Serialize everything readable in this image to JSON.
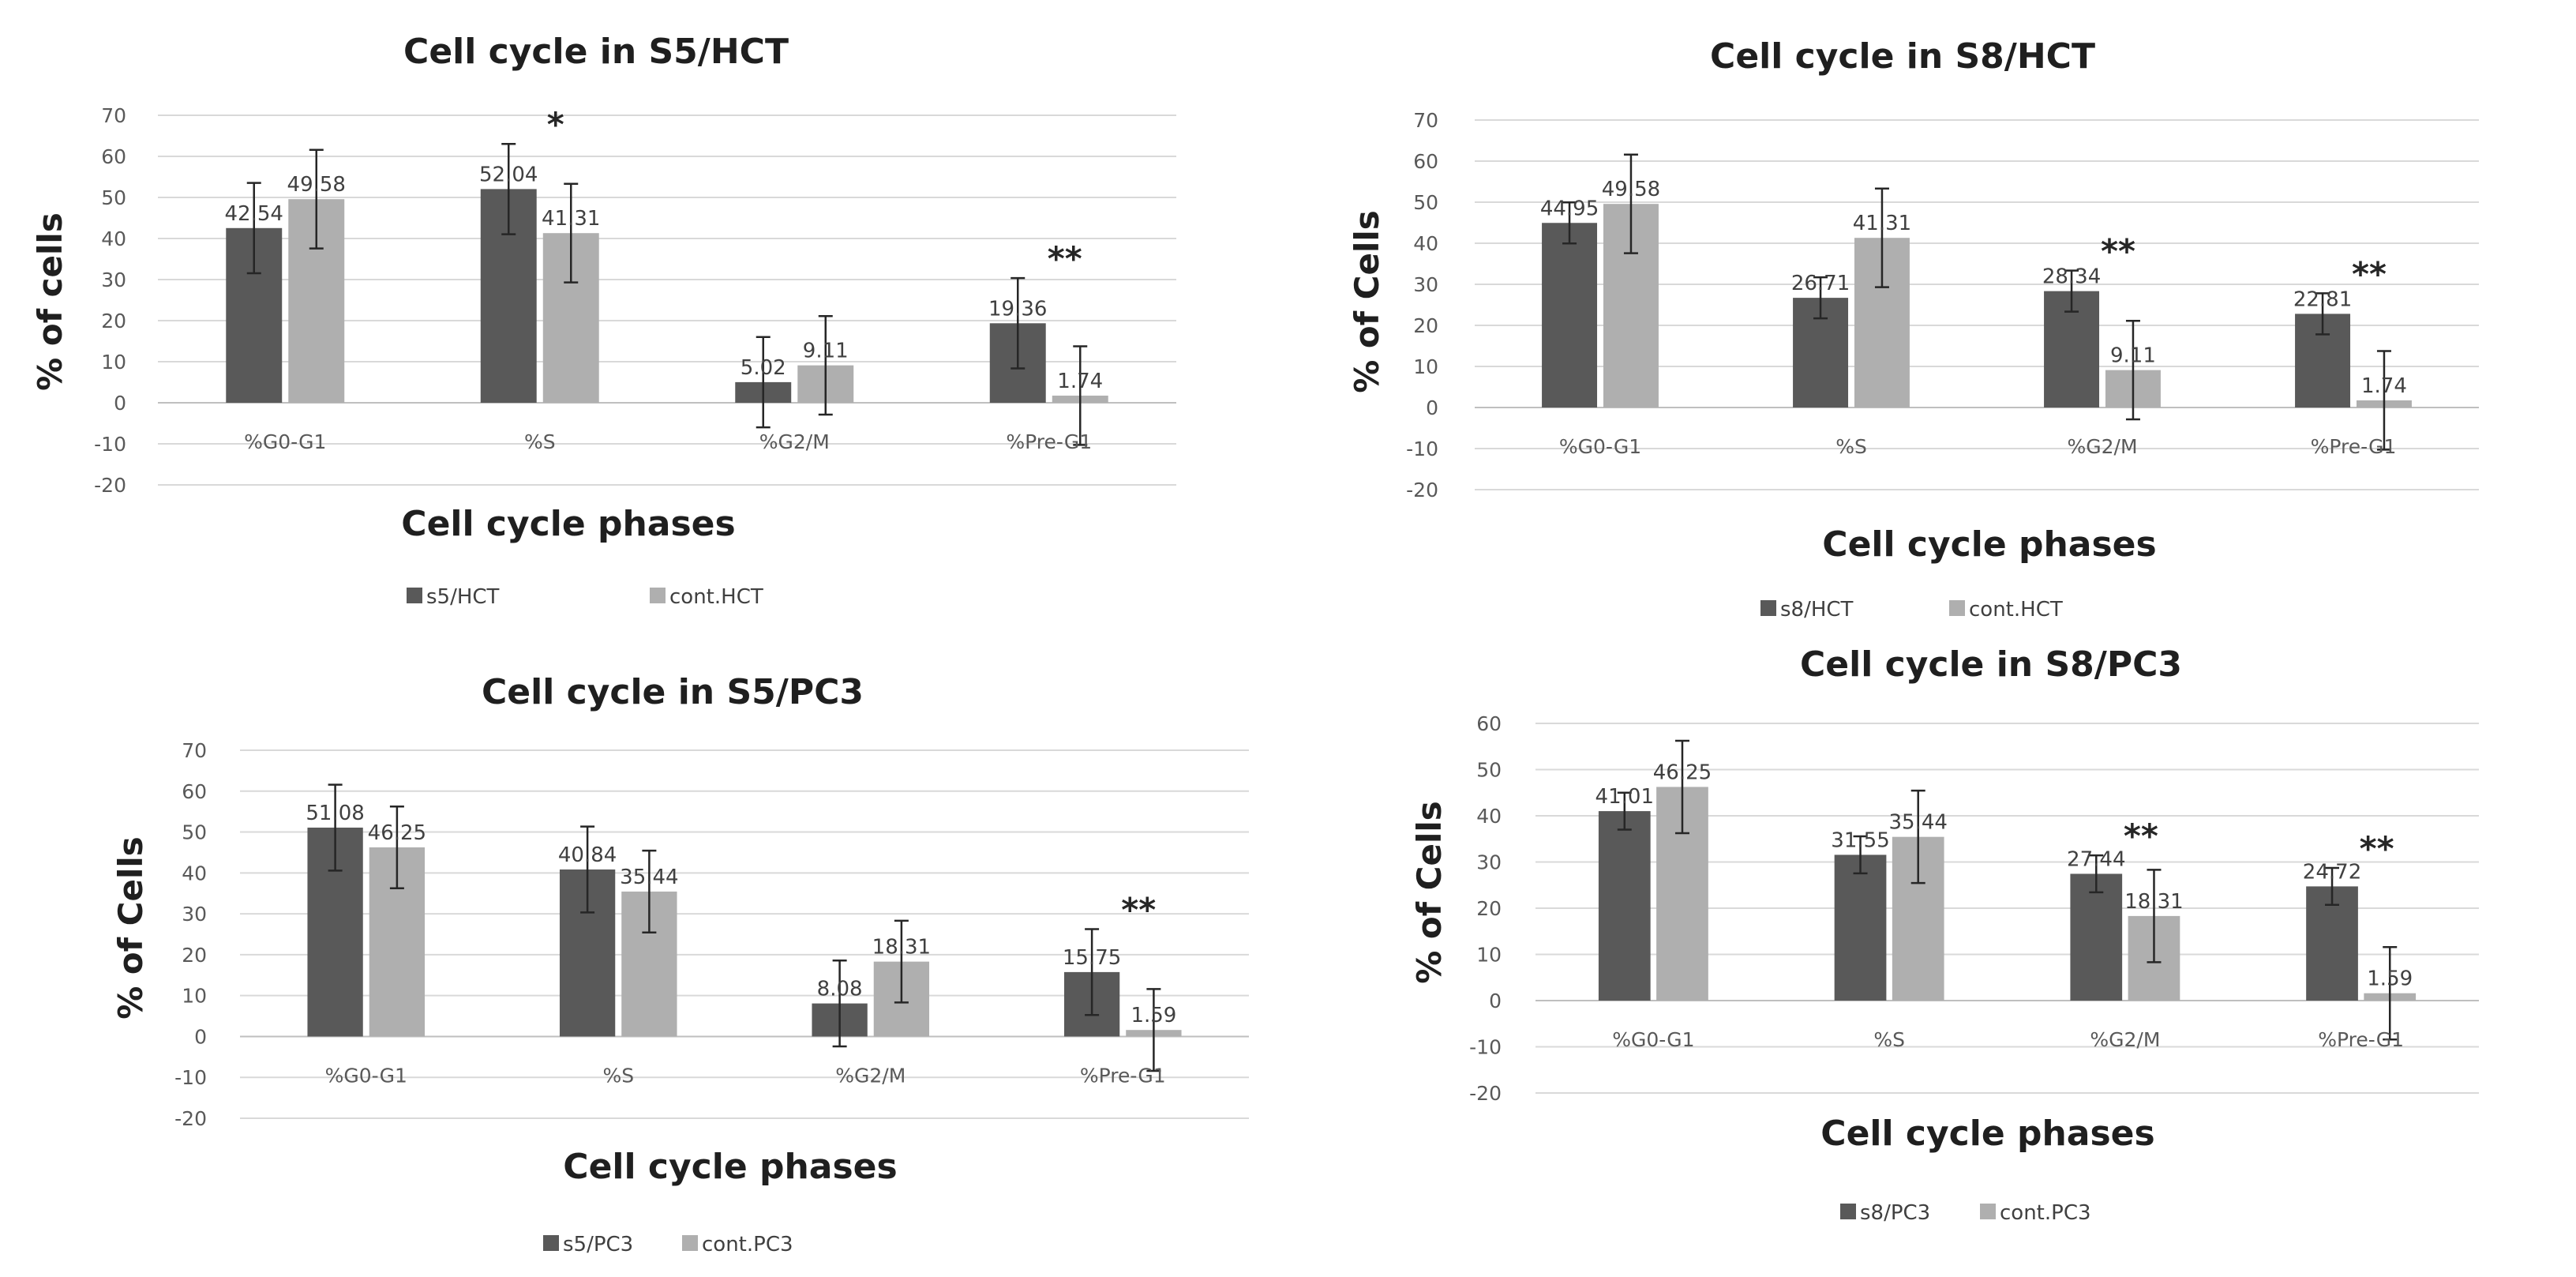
{
  "chart_data": [
    {
      "type": "bar",
      "title": "Cell cycle in S5/HCT",
      "xlabel": "Cell cycle phases",
      "ylabel": "% of cells",
      "categories": [
        "%G0-G1",
        "%S",
        "%G2/M",
        "%Pre-G1"
      ],
      "ylim": [
        -20,
        70
      ],
      "yticks": [
        -20,
        -10,
        0,
        10,
        20,
        30,
        40,
        50,
        60,
        70
      ],
      "grid": true,
      "legend": "bottom",
      "series": [
        {
          "name": "s5/HCT",
          "color": "#595959",
          "values": [
            42.54,
            52.04,
            5.02,
            19.36
          ],
          "labels": [
            "42.54",
            "52.04",
            "5.02",
            "19.36"
          ],
          "errors": [
            11,
            11,
            11,
            11
          ]
        },
        {
          "name": "cont.HCT",
          "color": "#afafaf",
          "values": [
            49.58,
            41.31,
            9.11,
            1.74
          ],
          "labels": [
            "49.58",
            "41.31",
            "9.11",
            "1.74"
          ],
          "errors": [
            12,
            12,
            12,
            12
          ]
        }
      ],
      "annotations": [
        "",
        "*",
        "",
        "**"
      ]
    },
    {
      "type": "bar",
      "title": "Cell cycle in S8/HCT",
      "xlabel": "Cell cycle phases",
      "ylabel": "% of Cells",
      "categories": [
        "%G0-G1",
        "%S",
        "%G2/M",
        "%Pre-G1"
      ],
      "ylim": [
        -20,
        70
      ],
      "yticks": [
        -20,
        -10,
        0,
        10,
        20,
        30,
        40,
        50,
        60,
        70
      ],
      "grid": true,
      "legend": "bottom",
      "series": [
        {
          "name": "s8/HCT",
          "color": "#595959",
          "values": [
            44.95,
            26.71,
            28.34,
            22.81
          ],
          "labels": [
            "44.95",
            "26.71",
            "28.34",
            "22.81"
          ],
          "errors": [
            5,
            5,
            5,
            5
          ]
        },
        {
          "name": "cont.HCT",
          "color": "#afafaf",
          "values": [
            49.58,
            41.31,
            9.11,
            1.74
          ],
          "labels": [
            "49.58",
            "41.31",
            "9.11",
            "1.74"
          ],
          "errors": [
            12,
            12,
            12,
            12
          ]
        }
      ],
      "annotations": [
        "",
        "",
        "**",
        "**"
      ]
    },
    {
      "type": "bar",
      "title": "Cell cycle in S5/PC3",
      "xlabel": "Cell cycle phases",
      "ylabel": "% of Cells",
      "categories": [
        "%G0-G1",
        "%S",
        "%G2/M",
        "%Pre-G1"
      ],
      "ylim": [
        -20,
        70
      ],
      "yticks": [
        -20,
        -10,
        0,
        10,
        20,
        30,
        40,
        50,
        60,
        70
      ],
      "grid": true,
      "legend": "bottom",
      "series": [
        {
          "name": "s5/PC3",
          "color": "#595959",
          "values": [
            51.08,
            40.84,
            8.08,
            15.75
          ],
          "labels": [
            "51.08",
            "40.84",
            "8.08",
            "15.75"
          ],
          "errors": [
            10.5,
            10.5,
            10.5,
            10.5
          ]
        },
        {
          "name": "cont.PC3",
          "color": "#afafaf",
          "values": [
            46.25,
            35.44,
            18.31,
            1.59
          ],
          "labels": [
            "46.25",
            "35.44",
            "18.31",
            "1.59"
          ],
          "errors": [
            10,
            10,
            10,
            10
          ]
        }
      ],
      "annotations": [
        "",
        "",
        "",
        "**"
      ]
    },
    {
      "type": "bar",
      "title": "Cell cycle in S8/PC3",
      "xlabel": "Cell cycle phases",
      "ylabel": "% of Cells",
      "categories": [
        "%G0-G1",
        "%S",
        "%G2/M",
        "%Pre-G1"
      ],
      "ylim": [
        -20,
        60
      ],
      "yticks": [
        -20,
        -10,
        0,
        10,
        20,
        30,
        40,
        50,
        60
      ],
      "grid": true,
      "legend": "bottom",
      "series": [
        {
          "name": "s8/PC3",
          "color": "#595959",
          "values": [
            41.01,
            31.55,
            27.44,
            24.72
          ],
          "labels": [
            "41.01",
            "31.55",
            "27.44",
            "24.72"
          ],
          "errors": [
            4,
            4,
            4,
            4
          ]
        },
        {
          "name": "cont.PC3",
          "color": "#afafaf",
          "values": [
            46.25,
            35.44,
            18.31,
            1.59
          ],
          "labels": [
            "46.25",
            "35.44",
            "18.31",
            "1.59"
          ],
          "errors": [
            10,
            10,
            10,
            10
          ]
        }
      ],
      "annotations": [
        "",
        "",
        "**",
        "**"
      ]
    }
  ]
}
